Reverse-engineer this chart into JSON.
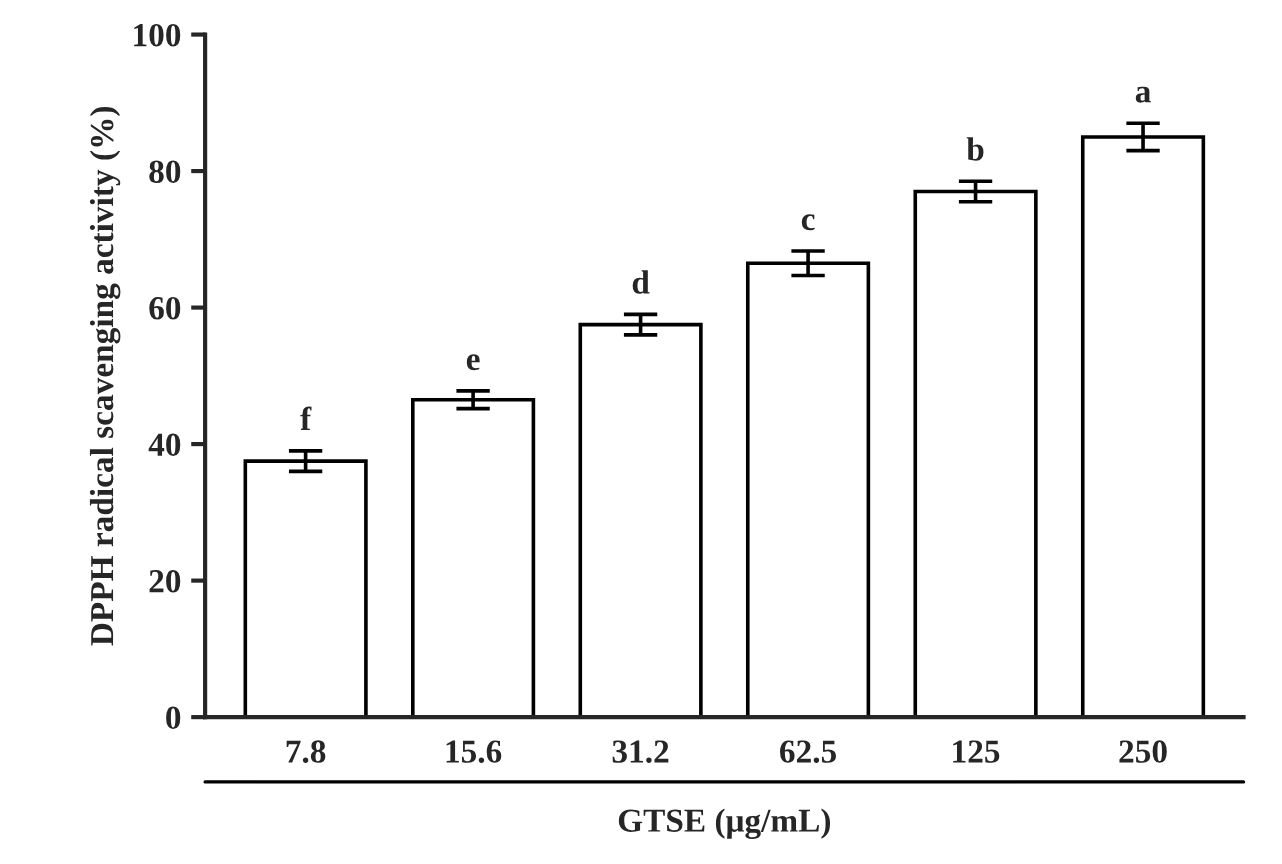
{
  "chart_data": {
    "type": "bar",
    "xlabel": "GTSE (μg/mL)",
    "ylabel": "DPPH radical scavenging activity (%)",
    "categories": [
      "7.8",
      "15.6",
      "31.2",
      "62.5",
      "125",
      "250"
    ],
    "values": [
      37.5,
      46.5,
      57.5,
      66.5,
      77,
      85
    ],
    "errors": [
      1.5,
      1.3,
      1.5,
      1.8,
      1.5,
      2
    ],
    "color": "#ffffff",
    "ylim": [
      0,
      100
    ],
    "yticks": [
      0,
      20,
      40,
      60,
      80,
      100
    ],
    "grid": false,
    "legend": false,
    "annotations": [
      {
        "text": "f",
        "x": "7.8",
        "y": 39
      },
      {
        "text": "e",
        "x": "15.6",
        "y": 47.8
      },
      {
        "text": "d",
        "x": "31.2",
        "y": 59
      },
      {
        "text": "c",
        "x": "62.5",
        "y": 68.3
      },
      {
        "text": "b",
        "x": "125",
        "y": 78.5
      },
      {
        "text": "a",
        "x": "250",
        "y": 87
      }
    ]
  }
}
